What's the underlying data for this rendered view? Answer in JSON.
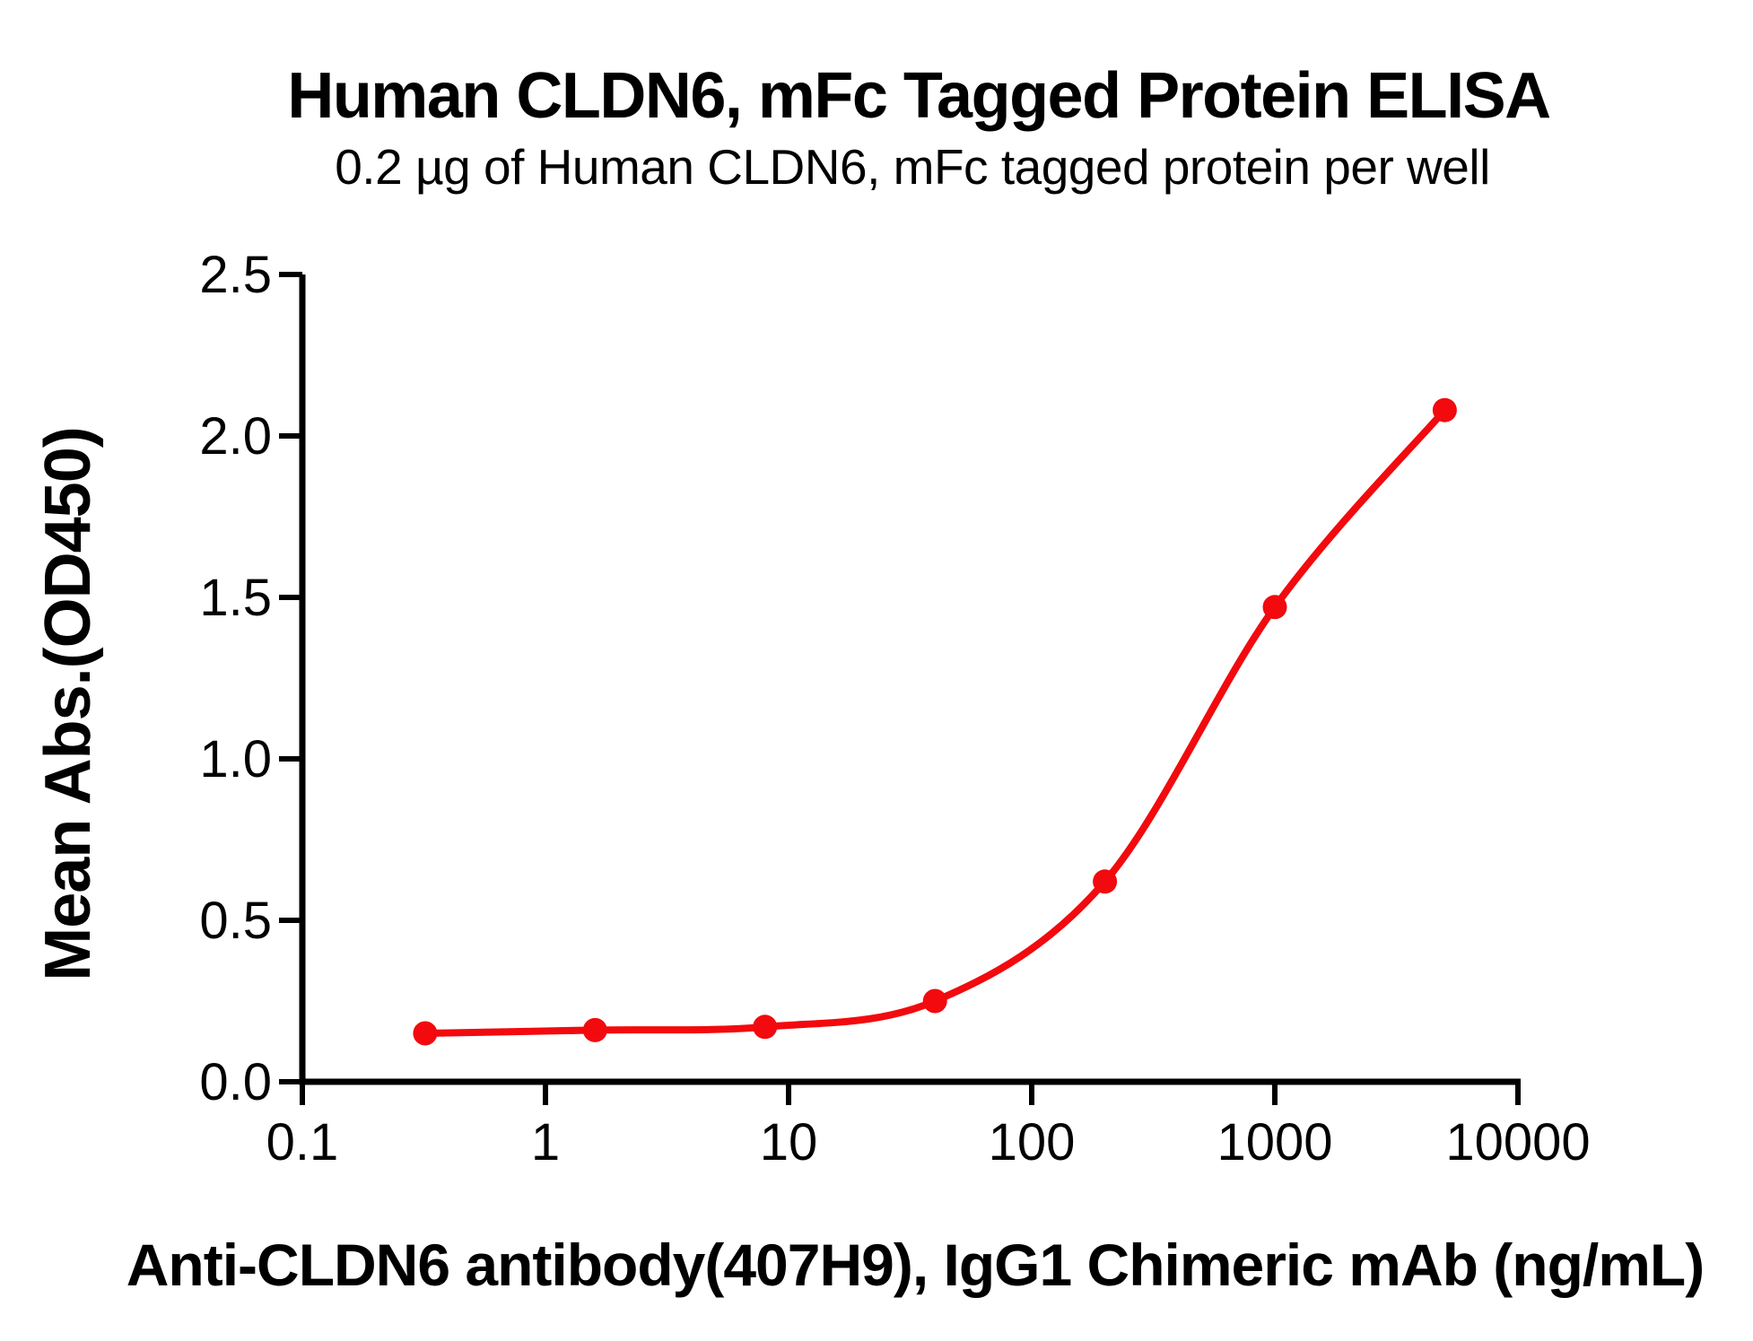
{
  "page": {
    "background_color": "#ffffff",
    "text_color": "#000000"
  },
  "chart_data": {
    "type": "line",
    "title": "Human CLDN6, mFc Tagged Protein ELISA",
    "subtitle": "0.2 µg of Human CLDN6, mFc tagged protein per well",
    "xlabel": "Anti-CLDN6 antibody(407H9), IgG1 Chimeric mAb (ng/mL)",
    "ylabel": "Mean Abs.(OD450)",
    "x_scale": "log10",
    "xlim": [
      0.1,
      10000
    ],
    "ylim": [
      0.0,
      2.5
    ],
    "grid": false,
    "legend_position": "none",
    "axis_color": "#000000",
    "x_ticks": [
      {
        "label": "0.1",
        "value": 0.1
      },
      {
        "label": "1",
        "value": 1
      },
      {
        "label": "10",
        "value": 10
      },
      {
        "label": "100",
        "value": 100
      },
      {
        "label": "1000",
        "value": 1000
      },
      {
        "label": "10000",
        "value": 10000
      }
    ],
    "y_ticks": [
      {
        "label": "0.0",
        "value": 0.0
      },
      {
        "label": "0.5",
        "value": 0.5
      },
      {
        "label": "1.0",
        "value": 1.0
      },
      {
        "label": "1.5",
        "value": 1.5
      },
      {
        "label": "2.0",
        "value": 2.0
      },
      {
        "label": "2.5",
        "value": 2.5
      }
    ],
    "series": [
      {
        "color": "#F20A0E",
        "marker": "circle",
        "x": [
          0.32,
          1.6,
          8,
          40,
          200,
          1000,
          5000
        ],
        "y": [
          0.15,
          0.16,
          0.17,
          0.25,
          0.62,
          1.47,
          2.08
        ]
      }
    ]
  }
}
